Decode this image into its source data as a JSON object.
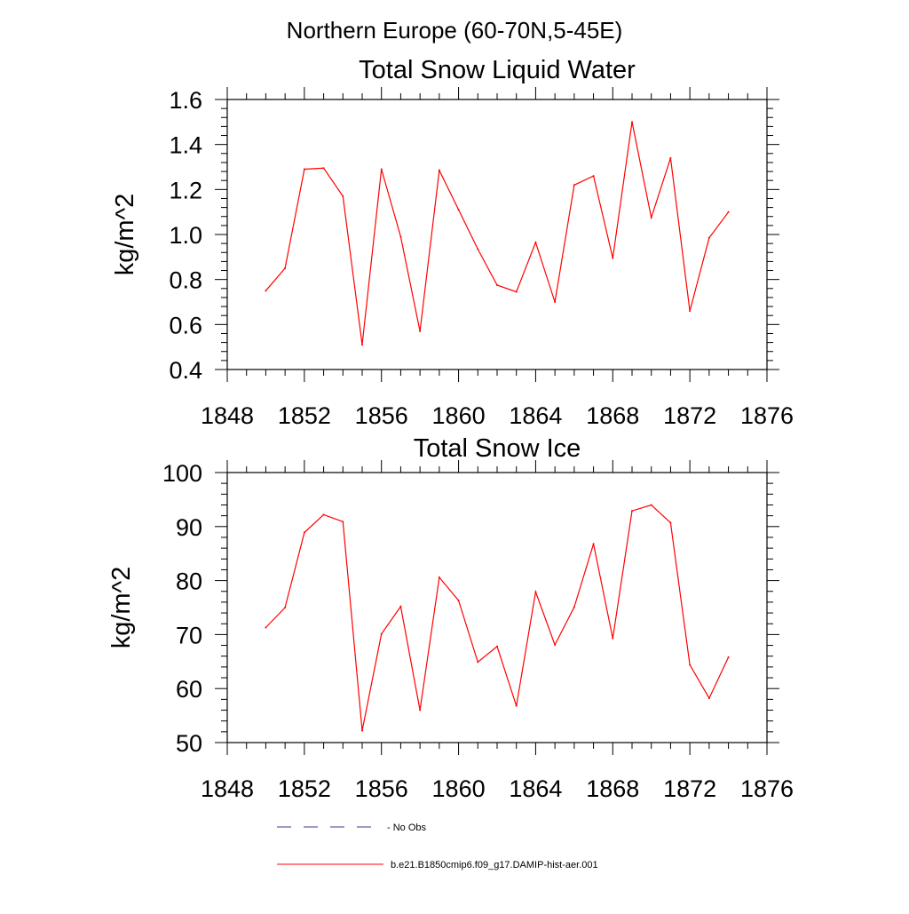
{
  "figure_title": "Northern Europe (60-70N,5-45E)",
  "colors": {
    "series": "#ff0000",
    "obs": "#3a3a8c",
    "axis": "#000000"
  },
  "legend": [
    {
      "label": "No Obs",
      "style": "dashed",
      "color": "#3a3a8c"
    },
    {
      "label": "b.e21.B1850cmip6.f09_g17.DAMIP-hist-aer.001",
      "style": "solid",
      "color": "#ff0000"
    }
  ],
  "chart_data": [
    {
      "type": "line",
      "title": "Total Snow Liquid Water",
      "xlabel": "",
      "ylabel": "kg/m^2",
      "xlim": [
        1848,
        1876
      ],
      "ylim": [
        0.4,
        1.6
      ],
      "xticks": [
        1848,
        1852,
        1856,
        1860,
        1864,
        1868,
        1872,
        1876
      ],
      "xtick_labels": [
        "1848",
        "1852",
        "1856",
        "1860",
        "1864",
        "1868",
        "1872",
        "1876"
      ],
      "yticks": [
        0.4,
        0.6,
        0.8,
        1.0,
        1.2,
        1.4,
        1.6
      ],
      "ytick_labels": [
        "0.4",
        "0.6",
        "0.8",
        "1.0",
        "1.2",
        "1.4",
        "1.6"
      ],
      "grid": false,
      "series": [
        {
          "name": "b.e21.B1850cmip6.f09_g17.DAMIP-hist-aer.001",
          "x": [
            1850,
            1851,
            1852,
            1853,
            1854,
            1855,
            1856,
            1857,
            1858,
            1859,
            1860,
            1861,
            1862,
            1863,
            1864,
            1865,
            1866,
            1867,
            1868,
            1869,
            1870,
            1871,
            1872,
            1873,
            1874
          ],
          "y": [
            0.75,
            0.85,
            1.29,
            1.295,
            1.17,
            0.51,
            1.29,
            0.99,
            0.57,
            1.285,
            1.11,
            0.935,
            0.775,
            0.745,
            0.965,
            0.7,
            1.22,
            1.26,
            0.895,
            1.5,
            1.075,
            1.34,
            0.66,
            0.985,
            1.1
          ]
        }
      ]
    },
    {
      "type": "line",
      "title": "Total Snow Ice",
      "xlabel": "",
      "ylabel": "kg/m^2",
      "xlim": [
        1848,
        1876
      ],
      "ylim": [
        50,
        100
      ],
      "xticks": [
        1848,
        1852,
        1856,
        1860,
        1864,
        1868,
        1872,
        1876
      ],
      "xtick_labels": [
        "1848",
        "1852",
        "1856",
        "1860",
        "1864",
        "1868",
        "1872",
        "1876"
      ],
      "yticks": [
        50,
        60,
        70,
        80,
        90,
        100
      ],
      "ytick_labels": [
        "50",
        "60",
        "70",
        "80",
        "90",
        "100"
      ],
      "grid": false,
      "series": [
        {
          "name": "b.e21.B1850cmip6.f09_g17.DAMIP-hist-aer.001",
          "x": [
            1850,
            1851,
            1852,
            1853,
            1854,
            1855,
            1856,
            1857,
            1858,
            1859,
            1860,
            1861,
            1862,
            1863,
            1864,
            1865,
            1866,
            1867,
            1868,
            1869,
            1870,
            1871,
            1872,
            1873,
            1874
          ],
          "y": [
            71.3,
            75.0,
            88.9,
            92.2,
            90.9,
            52.2,
            70.1,
            75.2,
            56.0,
            80.6,
            76.3,
            64.9,
            67.8,
            56.8,
            77.9,
            68.1,
            75.1,
            86.8,
            69.3,
            92.9,
            94.0,
            90.7,
            64.4,
            58.2,
            65.8
          ]
        }
      ]
    }
  ]
}
